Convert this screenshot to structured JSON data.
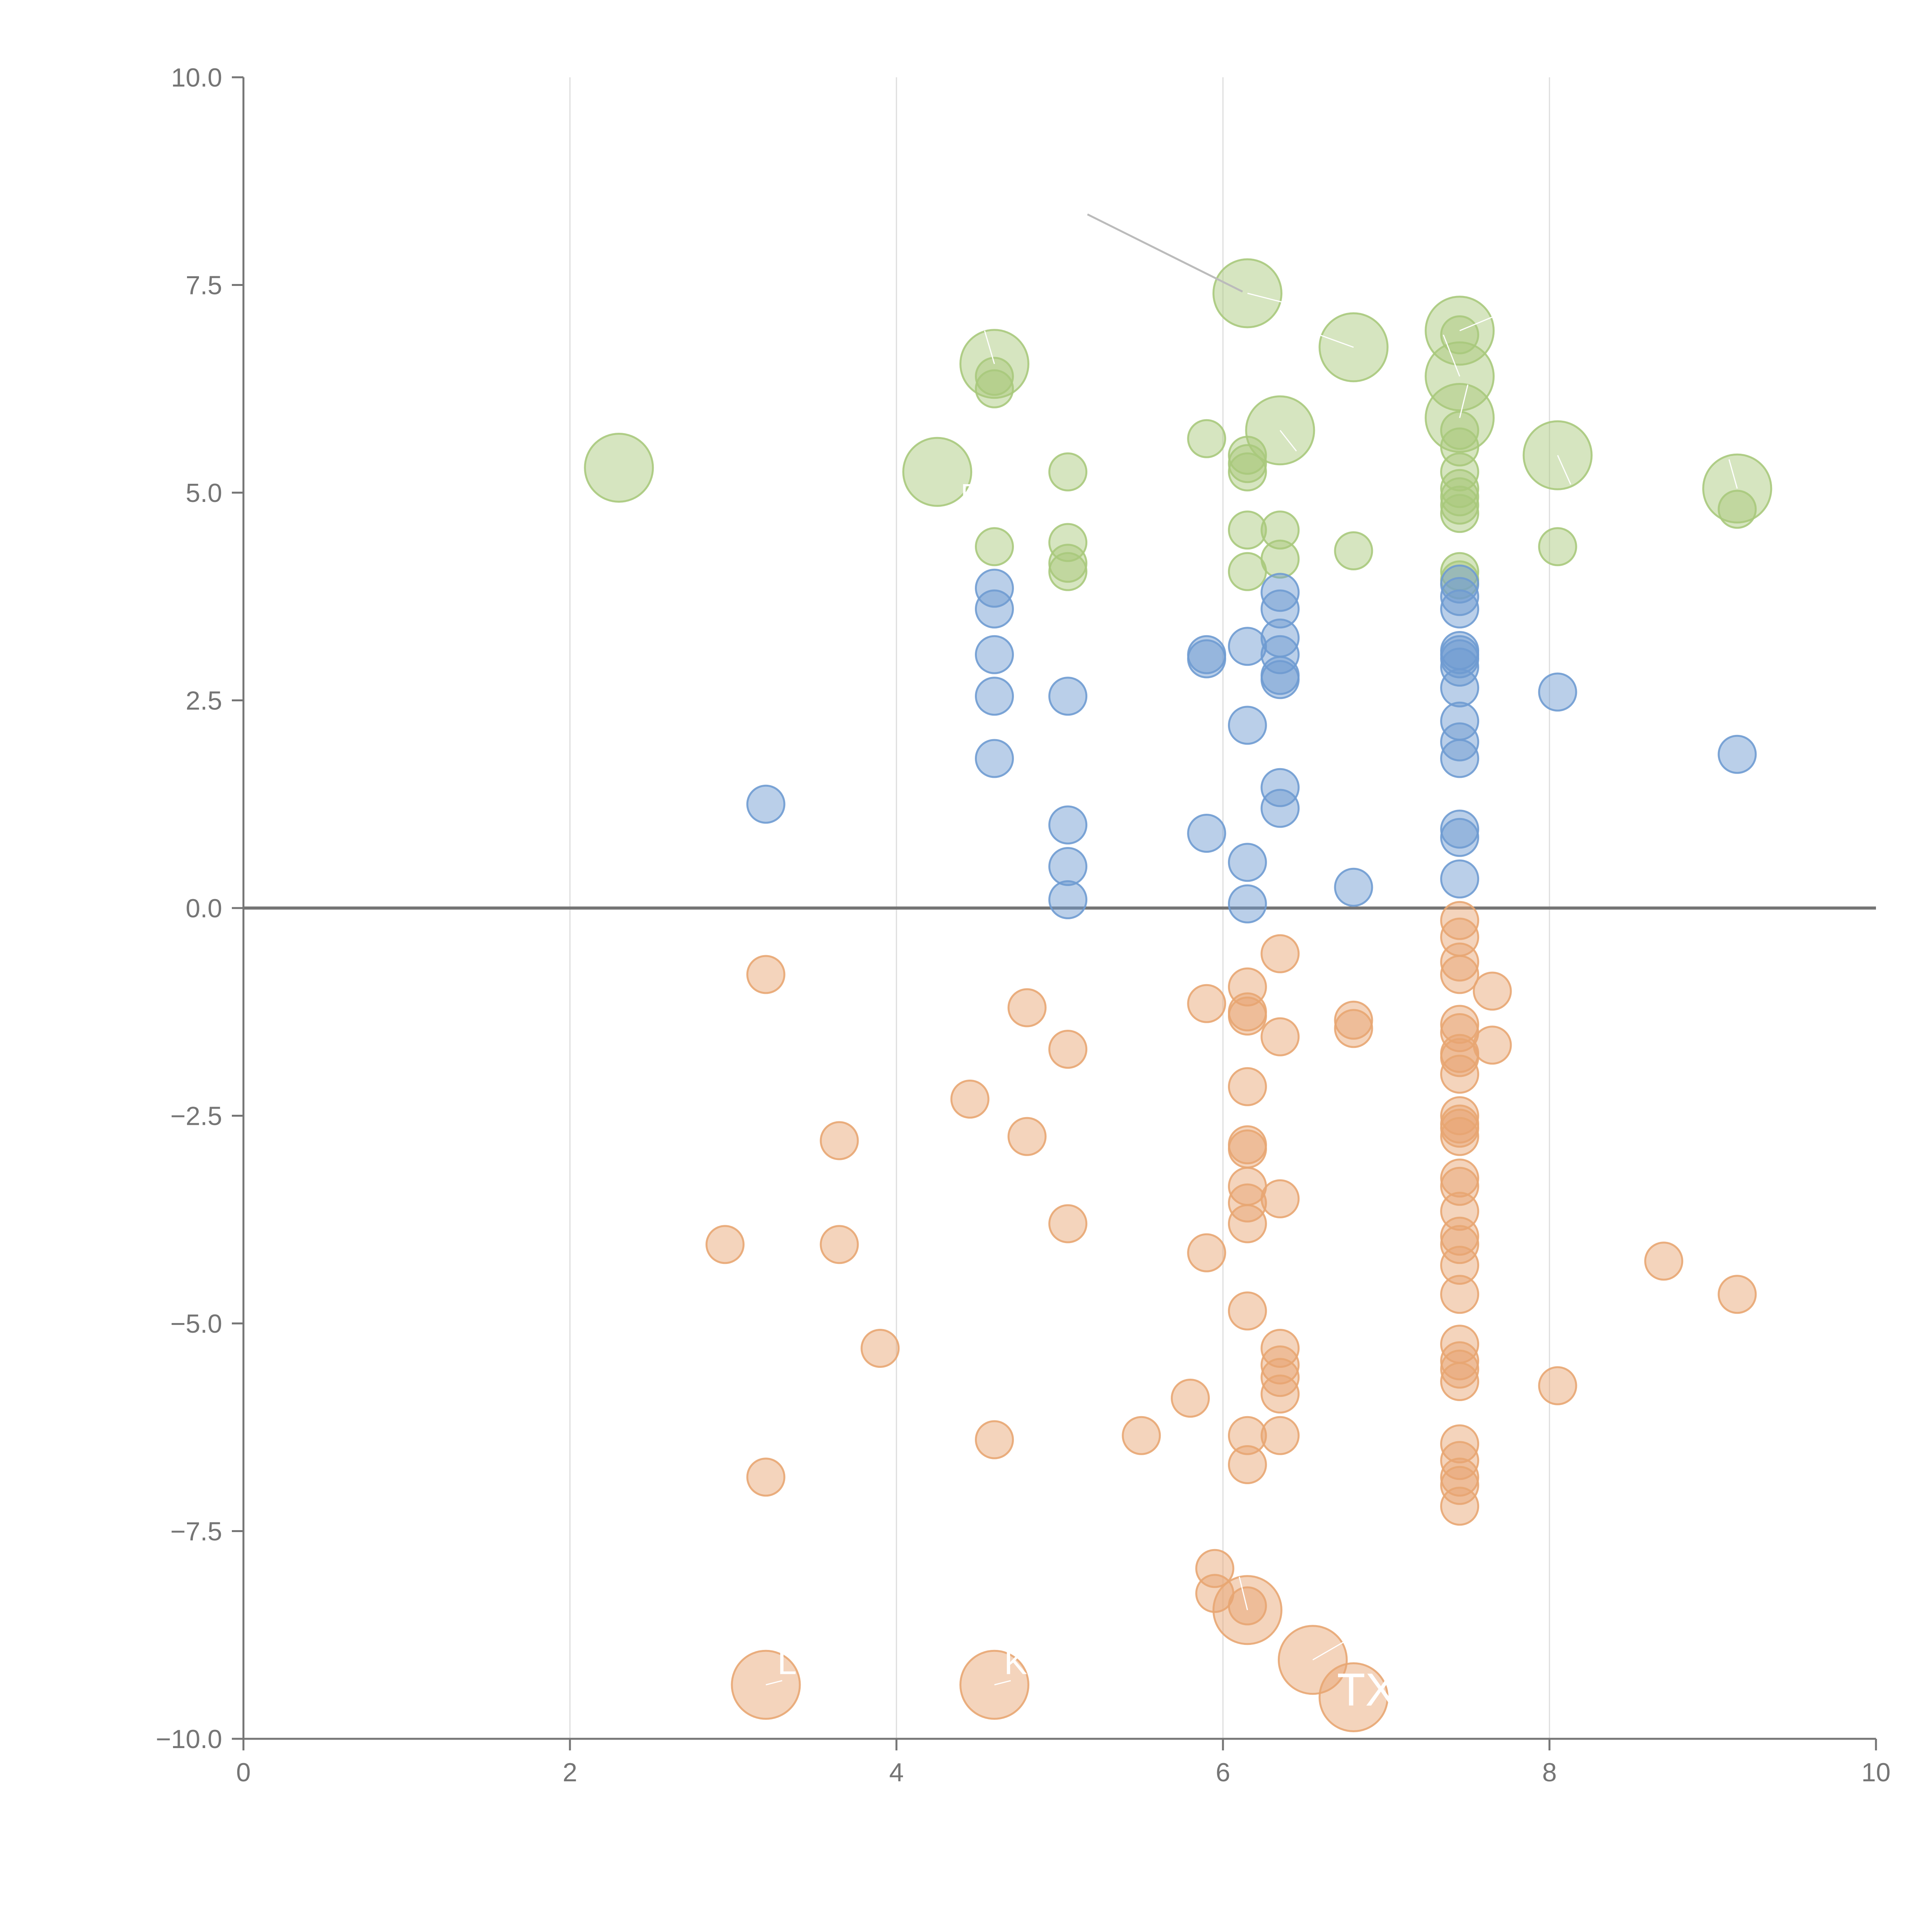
{
  "chart_data": {
    "type": "scatter",
    "title": "",
    "xlabel": "",
    "ylabel": "",
    "xlim": [
      0,
      10
    ],
    "ylim": [
      -10,
      10
    ],
    "grid": "vertical",
    "x_ticks": [
      0,
      2,
      4,
      6,
      8,
      10
    ],
    "x_tick_labels": [
      "0",
      "2",
      "4",
      "6",
      "8",
      "10"
    ],
    "y_ticks": [
      10,
      7.5,
      5,
      2.5,
      0,
      -2.5,
      -5,
      -7.5,
      -10
    ],
    "y_tick_labels": [
      "10.0",
      "7.5",
      "5.0",
      "2.5",
      "0.0",
      "−2.5",
      "−5.0",
      "−7.5",
      "−10.0"
    ],
    "colors": {
      "green": "#a9c97c",
      "blue": "#6f9bd1",
      "orange": "#e8a672",
      "axis": "#757575",
      "grid": "#dddddd"
    },
    "series": [
      {
        "name": "green",
        "color": "#a9c97c",
        "points": [
          [
            2.3,
            5.3,
            2
          ],
          [
            4.25,
            5.25,
            2
          ],
          [
            4.6,
            6.55,
            2
          ],
          [
            6.15,
            7.4,
            2
          ],
          [
            6.8,
            6.75,
            2
          ],
          [
            7.45,
            6.95,
            2
          ],
          [
            7.45,
            6.4,
            2
          ],
          [
            7.45,
            5.9,
            2
          ],
          [
            6.35,
            5.75,
            2
          ],
          [
            8.05,
            5.45,
            2
          ],
          [
            9.15,
            5.05,
            2
          ],
          [
            4.6,
            6.4,
            1
          ],
          [
            4.6,
            6.25,
            1
          ],
          [
            4.6,
            4.35,
            1
          ],
          [
            5.05,
            5.25,
            1
          ],
          [
            5.05,
            4.4,
            1
          ],
          [
            5.05,
            4.15,
            1
          ],
          [
            5.05,
            4.05,
            1
          ],
          [
            5.9,
            5.65,
            1
          ],
          [
            6.15,
            5.45,
            1
          ],
          [
            6.15,
            5.35,
            1
          ],
          [
            6.15,
            5.25,
            1
          ],
          [
            6.15,
            4.55,
            1
          ],
          [
            6.15,
            4.05,
            1
          ],
          [
            6.35,
            4.55,
            1
          ],
          [
            6.35,
            4.2,
            1
          ],
          [
            6.8,
            4.3,
            1
          ],
          [
            7.45,
            6.9,
            1
          ],
          [
            7.45,
            5.75,
            1
          ],
          [
            7.45,
            5.55,
            1
          ],
          [
            7.45,
            5.25,
            1
          ],
          [
            7.45,
            5.05,
            1
          ],
          [
            7.45,
            4.95,
            1
          ],
          [
            7.45,
            4.85,
            1
          ],
          [
            7.45,
            4.75,
            1
          ],
          [
            7.45,
            4.05,
            1
          ],
          [
            7.45,
            3.95,
            1
          ],
          [
            8.05,
            4.35,
            1
          ],
          [
            9.15,
            4.8,
            1
          ]
        ]
      },
      {
        "name": "blue",
        "color": "#6f9bd1",
        "points": [
          [
            3.2,
            1.25,
            1
          ],
          [
            4.6,
            3.85,
            1
          ],
          [
            4.6,
            3.6,
            1
          ],
          [
            4.6,
            3.05,
            1
          ],
          [
            4.6,
            2.55,
            1
          ],
          [
            4.6,
            1.8,
            1
          ],
          [
            5.05,
            2.55,
            1
          ],
          [
            5.05,
            1.0,
            1
          ],
          [
            5.05,
            0.5,
            1
          ],
          [
            5.05,
            0.1,
            1
          ],
          [
            5.9,
            3.05,
            1
          ],
          [
            5.9,
            3.0,
            1
          ],
          [
            5.9,
            0.9,
            1
          ],
          [
            6.15,
            3.15,
            1
          ],
          [
            6.15,
            2.2,
            1
          ],
          [
            6.15,
            0.55,
            1
          ],
          [
            6.15,
            0.05,
            1
          ],
          [
            6.35,
            3.8,
            1
          ],
          [
            6.35,
            3.6,
            1
          ],
          [
            6.35,
            3.25,
            1
          ],
          [
            6.35,
            3.05,
            1
          ],
          [
            6.35,
            2.8,
            1
          ],
          [
            6.35,
            2.75,
            1
          ],
          [
            6.35,
            1.45,
            1
          ],
          [
            6.35,
            1.2,
            1
          ],
          [
            6.8,
            0.25,
            1
          ],
          [
            7.45,
            3.9,
            1
          ],
          [
            7.45,
            3.75,
            1
          ],
          [
            7.45,
            3.6,
            1
          ],
          [
            7.45,
            3.1,
            1
          ],
          [
            7.45,
            3.05,
            1
          ],
          [
            7.45,
            3.0,
            1
          ],
          [
            7.45,
            2.9,
            1
          ],
          [
            7.45,
            2.65,
            1
          ],
          [
            7.45,
            2.25,
            1
          ],
          [
            7.45,
            2.0,
            1
          ],
          [
            7.45,
            1.8,
            1
          ],
          [
            7.45,
            0.95,
            1
          ],
          [
            7.45,
            0.85,
            1
          ],
          [
            7.45,
            0.35,
            1
          ],
          [
            8.05,
            2.6,
            1
          ],
          [
            9.15,
            1.85,
            1
          ]
        ]
      },
      {
        "name": "orange",
        "color": "#e8a672",
        "points": [
          [
            3.2,
            -0.8,
            1
          ],
          [
            2.95,
            -4.05,
            1
          ],
          [
            3.2,
            -6.85,
            1
          ],
          [
            3.65,
            -2.8,
            1
          ],
          [
            3.65,
            -4.05,
            1
          ],
          [
            3.9,
            -5.3,
            1
          ],
          [
            4.45,
            -2.3,
            1
          ],
          [
            4.6,
            -6.4,
            1
          ],
          [
            4.8,
            -1.2,
            1
          ],
          [
            4.8,
            -2.75,
            1
          ],
          [
            5.05,
            -1.7,
            1
          ],
          [
            5.05,
            -3.8,
            1
          ],
          [
            5.5,
            -6.35,
            1
          ],
          [
            5.8,
            -5.9,
            1
          ],
          [
            5.9,
            -1.15,
            1
          ],
          [
            5.9,
            -4.15,
            1
          ],
          [
            5.95,
            -7.95,
            1
          ],
          [
            5.95,
            -8.25,
            1
          ],
          [
            6.15,
            -0.95,
            1
          ],
          [
            6.15,
            -1.25,
            1
          ],
          [
            6.15,
            -1.3,
            1
          ],
          [
            6.15,
            -2.15,
            1
          ],
          [
            6.15,
            -2.85,
            1
          ],
          [
            6.15,
            -2.9,
            1
          ],
          [
            6.15,
            -3.35,
            1
          ],
          [
            6.15,
            -3.55,
            1
          ],
          [
            6.15,
            -3.8,
            1
          ],
          [
            6.15,
            -4.85,
            1
          ],
          [
            6.15,
            -6.35,
            1
          ],
          [
            6.15,
            -6.7,
            1
          ],
          [
            6.15,
            -8.4,
            1
          ],
          [
            6.35,
            -0.55,
            1
          ],
          [
            6.35,
            -1.55,
            1
          ],
          [
            6.35,
            -3.5,
            1
          ],
          [
            6.35,
            -5.3,
            1
          ],
          [
            6.35,
            -5.5,
            1
          ],
          [
            6.35,
            -5.65,
            1
          ],
          [
            6.35,
            -5.85,
            1
          ],
          [
            6.35,
            -6.35,
            1
          ],
          [
            6.8,
            -1.35,
            1
          ],
          [
            6.8,
            -1.45,
            1
          ],
          [
            7.45,
            -0.15,
            1
          ],
          [
            7.45,
            -0.35,
            1
          ],
          [
            7.45,
            -0.65,
            1
          ],
          [
            7.45,
            -0.8,
            1
          ],
          [
            7.45,
            -1.4,
            1
          ],
          [
            7.45,
            -1.5,
            1
          ],
          [
            7.45,
            -1.75,
            1
          ],
          [
            7.45,
            -1.8,
            1
          ],
          [
            7.45,
            -2.0,
            1
          ],
          [
            7.45,
            -2.5,
            1
          ],
          [
            7.45,
            -2.6,
            1
          ],
          [
            7.45,
            -2.65,
            1
          ],
          [
            7.45,
            -2.75,
            1
          ],
          [
            7.45,
            -3.25,
            1
          ],
          [
            7.45,
            -3.35,
            1
          ],
          [
            7.45,
            -3.65,
            1
          ],
          [
            7.45,
            -3.95,
            1
          ],
          [
            7.45,
            -4.05,
            1
          ],
          [
            7.45,
            -4.3,
            1
          ],
          [
            7.45,
            -4.65,
            1
          ],
          [
            7.45,
            -5.25,
            1
          ],
          [
            7.45,
            -5.45,
            1
          ],
          [
            7.45,
            -5.55,
            1
          ],
          [
            7.45,
            -5.7,
            1
          ],
          [
            7.45,
            -6.45,
            1
          ],
          [
            7.45,
            -6.65,
            1
          ],
          [
            7.45,
            -6.85,
            1
          ],
          [
            7.45,
            -6.95,
            1
          ],
          [
            7.45,
            -7.2,
            1
          ],
          [
            7.65,
            -1.0,
            1
          ],
          [
            7.65,
            -1.65,
            1
          ],
          [
            8.05,
            -5.75,
            1
          ],
          [
            8.7,
            -4.25,
            1
          ],
          [
            9.15,
            -4.65,
            1
          ],
          [
            3.2,
            -9.35,
            2
          ],
          [
            4.6,
            -9.35,
            2
          ],
          [
            6.15,
            -8.45,
            2
          ],
          [
            6.55,
            -9.05,
            2
          ],
          [
            6.8,
            -9.5,
            2
          ]
        ]
      }
    ],
    "annotations": [
      {
        "text": "TX",
        "x": 6.88,
        "y": -9.6,
        "size": 120
      },
      {
        "text": "L",
        "x": 3.33,
        "y": -9.22,
        "size": 90
      },
      {
        "text": "K",
        "x": 4.73,
        "y": -9.22,
        "size": 90
      },
      {
        "text": "E",
        "x": 4.45,
        "y": 4.88,
        "size": 70
      }
    ]
  }
}
